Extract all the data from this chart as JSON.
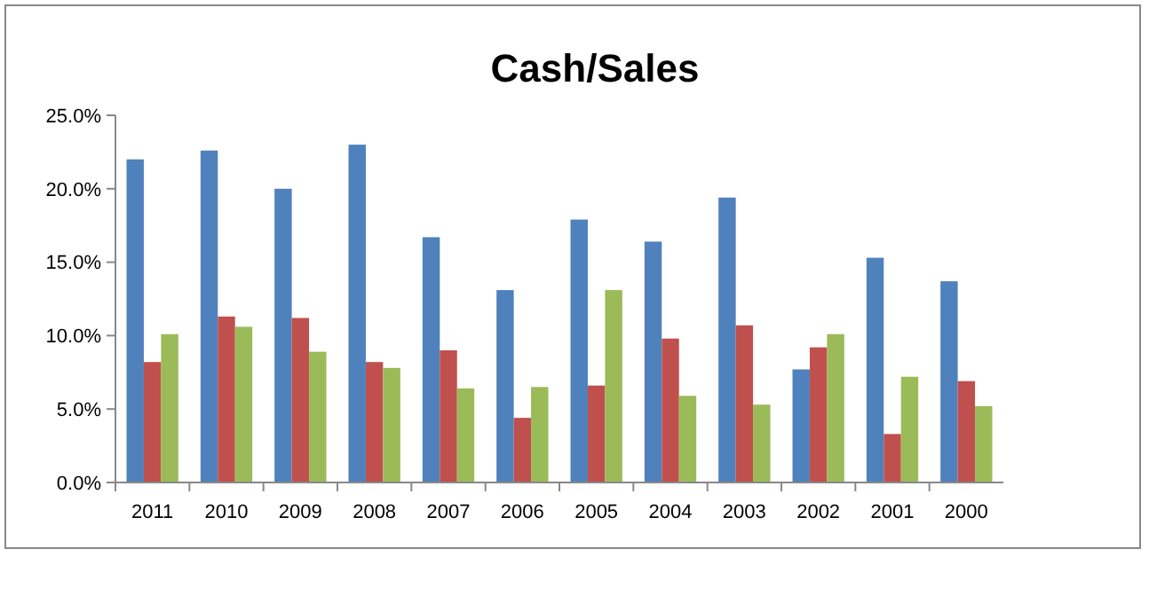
{
  "chart_data": {
    "type": "bar",
    "title": "Cash/Sales",
    "categories": [
      "2011",
      "2010",
      "2009",
      "2008",
      "2007",
      "2006",
      "2005",
      "2004",
      "2003",
      "2002",
      "2001",
      "2000"
    ],
    "series": [
      {
        "color": "#4f81bd",
        "values": [
          22.0,
          22.6,
          20.0,
          23.0,
          16.7,
          13.1,
          17.9,
          16.4,
          19.4,
          7.7,
          15.3,
          13.7
        ]
      },
      {
        "color": "#c0504d",
        "values": [
          8.2,
          11.3,
          11.2,
          8.2,
          9.0,
          4.4,
          6.6,
          9.8,
          10.7,
          9.2,
          3.3,
          6.9
        ]
      },
      {
        "color": "#9bbb59",
        "values": [
          10.1,
          10.6,
          8.9,
          7.8,
          6.4,
          6.5,
          13.1,
          5.9,
          5.3,
          10.1,
          7.2,
          5.2
        ]
      }
    ],
    "ylim": [
      0,
      25
    ],
    "yticks": [
      {
        "value": 0,
        "label": "0.0%"
      },
      {
        "value": 5,
        "label": "5.0%"
      },
      {
        "value": 10,
        "label": "10.0%"
      },
      {
        "value": 15,
        "label": "15.0%"
      },
      {
        "value": 20,
        "label": "20.0%"
      },
      {
        "value": 25,
        "label": "25.0%"
      }
    ],
    "grid": false
  }
}
